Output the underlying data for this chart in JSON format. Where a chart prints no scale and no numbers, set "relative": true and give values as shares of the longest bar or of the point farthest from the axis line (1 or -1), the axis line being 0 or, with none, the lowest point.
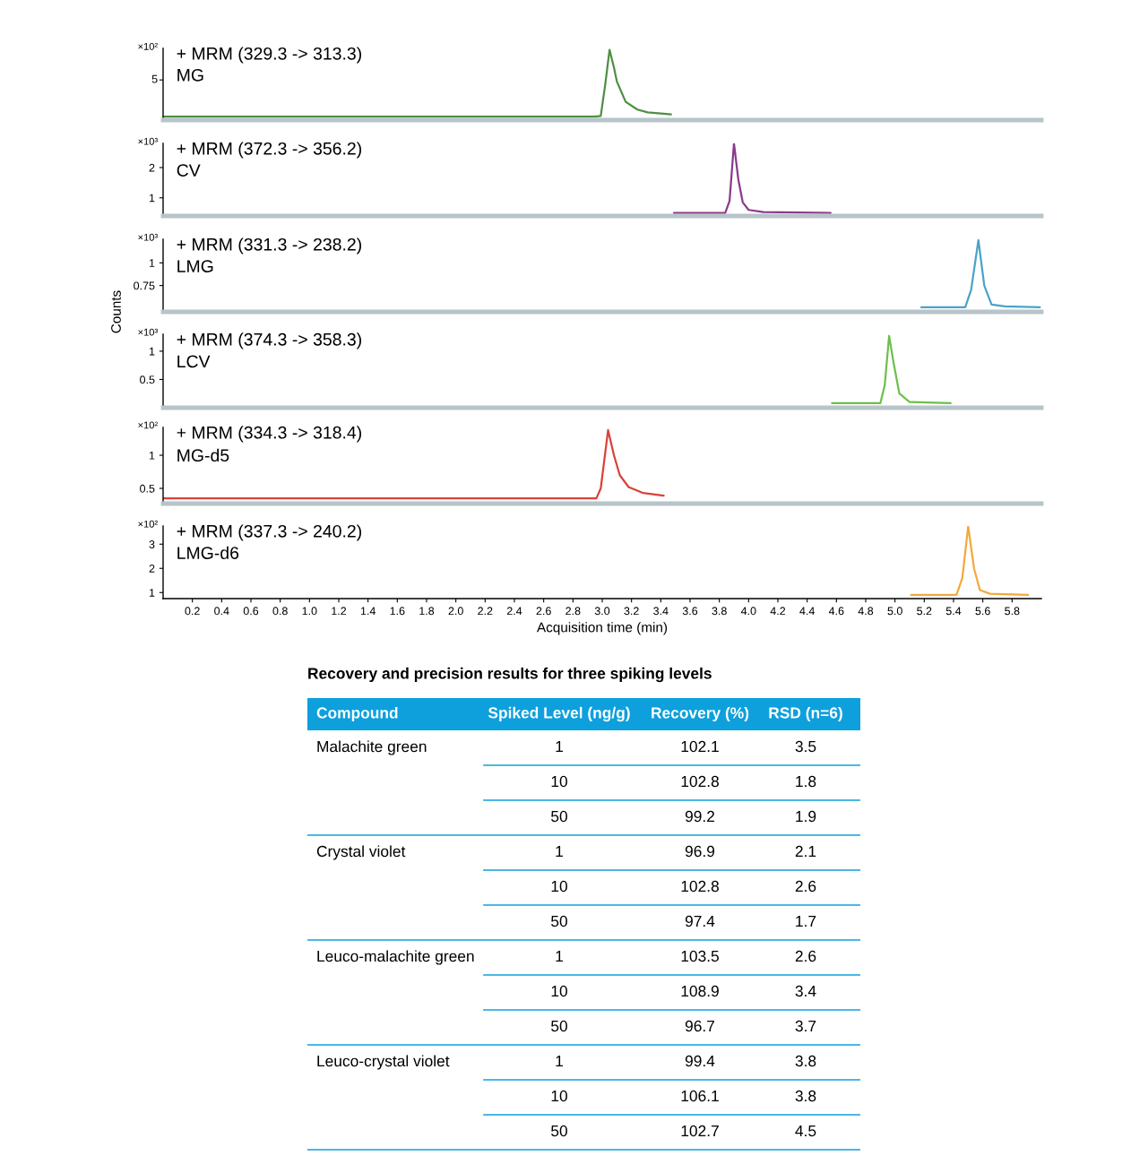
{
  "chart_data": [
    {
      "type": "line",
      "title": "+ MRM (329.3 -> 313.3)",
      "subtitle": "MG",
      "relative": true,
      "tick_labels": false,
      "annotations": [
        "×10²",
        "5"
      ],
      "xlim": [
        0,
        6
      ],
      "series": [
        {
          "color": "#4e8f43",
          "x": [
            0.0,
            2.95,
            2.99,
            3.02,
            3.05,
            3.08,
            3.1,
            3.16,
            3.24,
            3.31,
            3.47
          ],
          "values": [
            0.05,
            0.05,
            0.06,
            0.5,
            1.0,
            0.75,
            0.55,
            0.26,
            0.15,
            0.11,
            0.08
          ]
        }
      ]
    },
    {
      "type": "line",
      "title": "+ MRM (372.3 -> 356.2)",
      "subtitle": "CV",
      "tick_labels": "y",
      "annotations": [
        "×10³"
      ],
      "xlim": [
        0,
        6
      ],
      "ylim": [
        0.4,
        2.8
      ],
      "yticks": [
        1,
        2
      ],
      "series": [
        {
          "color": "#8a3a8a",
          "x": [
            3.49,
            3.84,
            3.87,
            3.9,
            3.93,
            3.96,
            4.0,
            4.1,
            4.56
          ],
          "values": [
            0.5,
            0.5,
            0.9,
            2.8,
            1.6,
            0.85,
            0.6,
            0.53,
            0.5
          ]
        }
      ]
    },
    {
      "type": "line",
      "title": "+ MRM (331.3 -> 238.2)",
      "subtitle": "LMG",
      "ylabel": "Counts",
      "tick_labels": "y",
      "annotations": [
        "×10³"
      ],
      "xlim": [
        0,
        6
      ],
      "ylim": [
        0.46,
        1.26
      ],
      "yticks": [
        0.75,
        1
      ],
      "series": [
        {
          "color": "#4aa3c8",
          "x": [
            5.18,
            5.48,
            5.52,
            5.57,
            5.61,
            5.66,
            5.75,
            5.99
          ],
          "values": [
            0.51,
            0.51,
            0.7,
            1.25,
            0.75,
            0.54,
            0.52,
            0.51
          ]
        }
      ]
    },
    {
      "type": "line",
      "title": "+ MRM (374.3 -> 358.3)",
      "subtitle": "LCV",
      "tick_labels": "y",
      "annotations": [
        "×10³"
      ],
      "xlim": [
        0,
        6
      ],
      "ylim": [
        0,
        1.3
      ],
      "yticks": [
        0.5,
        1
      ],
      "series": [
        {
          "color": "#6cc04a",
          "x": [
            4.57,
            4.9,
            4.93,
            4.96,
            4.99,
            5.03,
            5.1,
            5.38
          ],
          "values": [
            0.08,
            0.08,
            0.4,
            1.27,
            0.8,
            0.25,
            0.1,
            0.08
          ]
        }
      ]
    },
    {
      "type": "line",
      "title": "+ MRM (334.3 -> 318.4)",
      "subtitle": "MG-d5",
      "tick_labels": "y",
      "annotations": [
        "×10²"
      ],
      "xlim": [
        0,
        6
      ],
      "ylim": [
        0.27,
        1.42
      ],
      "yticks": [
        0.5,
        1
      ],
      "series": [
        {
          "color": "#d9413a",
          "x": [
            0.0,
            2.96,
            2.99,
            3.04,
            3.08,
            3.12,
            3.18,
            3.28,
            3.42
          ],
          "values": [
            0.35,
            0.35,
            0.5,
            1.38,
            1.0,
            0.7,
            0.52,
            0.43,
            0.39
          ]
        }
      ]
    },
    {
      "type": "line",
      "title": "+ MRM (337.3 -> 240.2)",
      "subtitle": "LMG-d6",
      "xlabel": "Acquisition time (min)",
      "annotations": [
        "×10²"
      ],
      "xlim": [
        0,
        6
      ],
      "ylim": [
        0.75,
        3.75
      ],
      "yticks": [
        1,
        2,
        3
      ],
      "xticks": [
        0.2,
        0.4,
        0.6,
        0.8,
        {
          "value": 1,
          "label": "1.0"
        },
        1.2,
        1.4,
        1.6,
        1.8,
        {
          "value": 2,
          "label": "2.0"
        },
        2.2,
        2.4,
        2.6,
        2.8,
        {
          "value": 3,
          "label": "3.0"
        },
        3.2,
        3.4,
        3.6,
        3.8,
        {
          "value": 4,
          "label": "4.0"
        },
        4.2,
        4.4,
        4.6,
        4.8,
        {
          "value": 5,
          "label": "5.0"
        },
        5.2,
        5.4,
        5.6,
        5.8
      ],
      "series": [
        {
          "color": "#f2a93b",
          "x": [
            5.11,
            5.42,
            5.46,
            5.5,
            5.54,
            5.58,
            5.65,
            5.91
          ],
          "values": [
            0.9,
            0.9,
            1.6,
            3.74,
            2.0,
            1.1,
            0.95,
            0.9
          ]
        }
      ]
    },
    {
      "type": "other",
      "title": "Recovery and precision results for three spiking levels",
      "categories": [
        "Compound",
        "Spiked Level (ng/g)",
        "Recovery (%)",
        "RSD (n=6)"
      ],
      "color": "#0ea0dc",
      "cell_labels": [
        [
          "Malachite green",
          "1",
          "102.1",
          "3.5"
        ],
        [
          null,
          "10",
          "102.8",
          "1.8"
        ],
        [
          null,
          "50",
          "99.2",
          "1.9"
        ],
        [
          "Crystal violet",
          "1",
          "96.9",
          "2.1"
        ],
        [
          null,
          "10",
          "102.8",
          "2.6"
        ],
        [
          null,
          "50",
          "97.4",
          "1.7"
        ],
        [
          "Leuco-malachite green",
          "1",
          "103.5",
          "2.6"
        ],
        [
          null,
          "10",
          "108.9",
          "3.4"
        ],
        [
          null,
          "50",
          "96.7",
          "3.7"
        ],
        [
          "Leuco-crystal violet",
          "1",
          "99.4",
          "3.8"
        ],
        [
          null,
          "10",
          "106.1",
          "3.8"
        ],
        [
          null,
          "50",
          "102.7",
          "4.5"
        ]
      ]
    }
  ]
}
